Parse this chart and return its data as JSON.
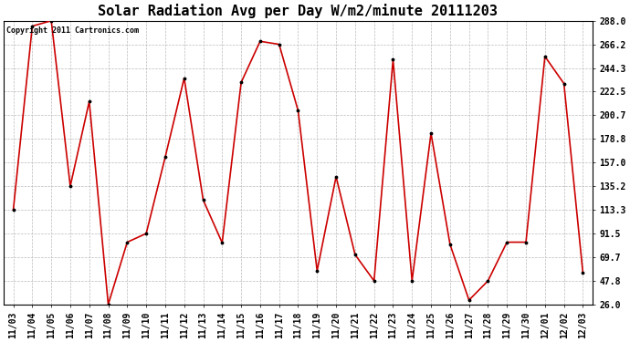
{
  "title": "Solar Radiation Avg per Day W/m2/minute 20111203",
  "copyright_text": "Copyright 2011 Cartronics.com",
  "dates": [
    "11/03",
    "11/04",
    "11/05",
    "11/06",
    "11/07",
    "11/08",
    "11/09",
    "11/10",
    "11/11",
    "11/12",
    "11/13",
    "11/14",
    "11/15",
    "11/16",
    "11/17",
    "11/18",
    "11/19",
    "11/20",
    "11/21",
    "11/22",
    "11/23",
    "11/24",
    "11/25",
    "11/26",
    "11/27",
    "11/28",
    "11/29",
    "11/30",
    "12/01",
    "12/02",
    "12/03"
  ],
  "values": [
    113.3,
    283.0,
    288.0,
    135.2,
    213.5,
    26.0,
    83.5,
    91.5,
    162.0,
    235.0,
    122.5,
    83.0,
    231.0,
    269.0,
    266.2,
    205.0,
    57.0,
    144.0,
    72.0,
    47.8,
    252.0,
    47.8,
    184.0,
    81.5,
    30.0,
    47.8,
    83.5,
    83.5,
    255.0,
    230.0,
    55.0
  ],
  "ylim": [
    26.0,
    288.0
  ],
  "yticks": [
    26.0,
    47.8,
    69.7,
    91.5,
    113.3,
    135.2,
    157.0,
    178.8,
    200.7,
    222.5,
    244.3,
    266.2,
    288.0
  ],
  "ytick_labels": [
    "26.0",
    "47.8",
    "69.7",
    "91.5",
    "113.3",
    "135.2",
    "157.0",
    "178.8",
    "200.7",
    "222.5",
    "244.3",
    "266.2",
    "288.0"
  ],
  "line_color": "#cc0000",
  "marker_color": "#000000",
  "bg_color": "#ffffff",
  "grid_color": "#bbbbbb",
  "title_fontsize": 11,
  "tick_fontsize": 7,
  "copyright_fontsize": 6
}
